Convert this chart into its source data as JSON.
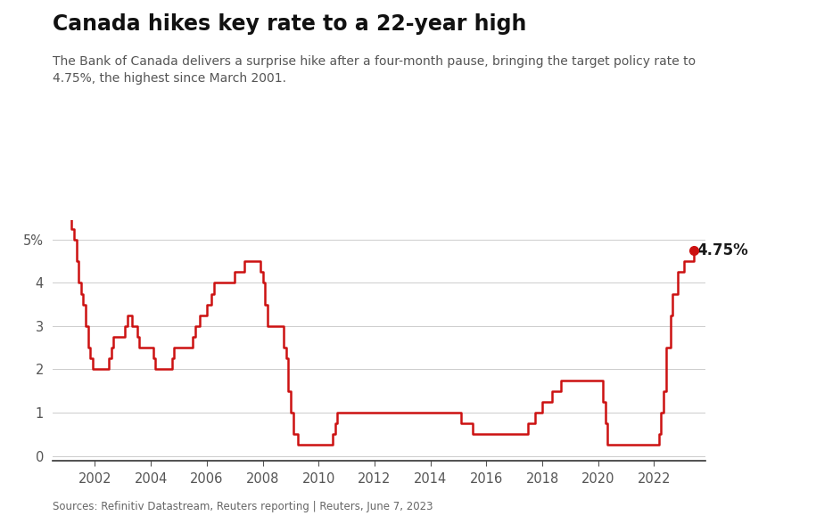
{
  "title": "Canada hikes key rate to a 22-year high",
  "subtitle": "The Bank of Canada delivers a surprise hike after a four-month pause, bringing the target policy rate to\n4.75%, the highest since March 2001.",
  "source": "Sources: Refinitiv Datastream, Reuters reporting | Reuters, June 7, 2023",
  "line_color": "#cc1111",
  "dot_color": "#cc1111",
  "bg_color": "#ffffff",
  "grid_color": "#cccccc",
  "annotation": "4.75%",
  "xlim_min": 2000.5,
  "xlim_max": 2023.85,
  "ylim_min": -0.12,
  "ylim_max": 5.45,
  "yticks": [
    0,
    1,
    2,
    3,
    4,
    5
  ],
  "ytick_labels": [
    "0",
    "1",
    "2",
    "3",
    "4",
    "5%"
  ],
  "xticks": [
    2002,
    2004,
    2006,
    2008,
    2010,
    2012,
    2014,
    2016,
    2018,
    2020,
    2022
  ],
  "rate_data": [
    [
      2000.583,
      5.75
    ],
    [
      2001.0,
      5.75
    ],
    [
      2001.083,
      5.5
    ],
    [
      2001.167,
      5.25
    ],
    [
      2001.25,
      5.0
    ],
    [
      2001.333,
      4.5
    ],
    [
      2001.417,
      4.0
    ],
    [
      2001.5,
      3.75
    ],
    [
      2001.583,
      3.5
    ],
    [
      2001.667,
      3.0
    ],
    [
      2001.75,
      2.5
    ],
    [
      2001.833,
      2.25
    ],
    [
      2001.917,
      2.0
    ],
    [
      2002.0,
      2.0
    ],
    [
      2002.25,
      2.0
    ],
    [
      2002.5,
      2.25
    ],
    [
      2002.583,
      2.5
    ],
    [
      2002.667,
      2.75
    ],
    [
      2003.0,
      2.75
    ],
    [
      2003.083,
      3.0
    ],
    [
      2003.167,
      3.25
    ],
    [
      2003.333,
      3.0
    ],
    [
      2003.5,
      2.75
    ],
    [
      2003.583,
      2.5
    ],
    [
      2003.667,
      2.5
    ],
    [
      2003.75,
      2.5
    ],
    [
      2003.833,
      2.5
    ],
    [
      2003.917,
      2.5
    ],
    [
      2004.0,
      2.5
    ],
    [
      2004.083,
      2.25
    ],
    [
      2004.167,
      2.0
    ],
    [
      2004.333,
      2.0
    ],
    [
      2004.583,
      2.0
    ],
    [
      2004.667,
      2.0
    ],
    [
      2004.75,
      2.25
    ],
    [
      2004.833,
      2.5
    ],
    [
      2005.0,
      2.5
    ],
    [
      2005.083,
      2.5
    ],
    [
      2005.167,
      2.5
    ],
    [
      2005.333,
      2.5
    ],
    [
      2005.5,
      2.75
    ],
    [
      2005.583,
      3.0
    ],
    [
      2005.667,
      3.0
    ],
    [
      2005.75,
      3.25
    ],
    [
      2005.833,
      3.25
    ],
    [
      2005.917,
      3.25
    ],
    [
      2006.0,
      3.5
    ],
    [
      2006.167,
      3.75
    ],
    [
      2006.25,
      4.0
    ],
    [
      2006.333,
      4.0
    ],
    [
      2006.5,
      4.0
    ],
    [
      2006.583,
      4.0
    ],
    [
      2006.75,
      4.0
    ],
    [
      2006.917,
      4.0
    ],
    [
      2007.0,
      4.25
    ],
    [
      2007.083,
      4.25
    ],
    [
      2007.25,
      4.25
    ],
    [
      2007.333,
      4.5
    ],
    [
      2007.583,
      4.5
    ],
    [
      2007.667,
      4.5
    ],
    [
      2007.75,
      4.5
    ],
    [
      2007.833,
      4.5
    ],
    [
      2007.917,
      4.25
    ],
    [
      2008.0,
      4.0
    ],
    [
      2008.083,
      3.5
    ],
    [
      2008.167,
      3.0
    ],
    [
      2008.25,
      3.0
    ],
    [
      2008.333,
      3.0
    ],
    [
      2008.417,
      3.0
    ],
    [
      2008.5,
      3.0
    ],
    [
      2008.583,
      3.0
    ],
    [
      2008.667,
      3.0
    ],
    [
      2008.75,
      2.5
    ],
    [
      2008.833,
      2.25
    ],
    [
      2008.917,
      1.5
    ],
    [
      2009.0,
      1.0
    ],
    [
      2009.083,
      0.5
    ],
    [
      2009.167,
      0.5
    ],
    [
      2009.25,
      0.25
    ],
    [
      2009.333,
      0.25
    ],
    [
      2009.5,
      0.25
    ],
    [
      2009.583,
      0.25
    ],
    [
      2009.667,
      0.25
    ],
    [
      2009.75,
      0.25
    ],
    [
      2009.833,
      0.25
    ],
    [
      2009.917,
      0.25
    ],
    [
      2010.0,
      0.25
    ],
    [
      2010.083,
      0.25
    ],
    [
      2010.167,
      0.25
    ],
    [
      2010.25,
      0.25
    ],
    [
      2010.333,
      0.25
    ],
    [
      2010.5,
      0.5
    ],
    [
      2010.583,
      0.75
    ],
    [
      2010.667,
      1.0
    ],
    [
      2010.75,
      1.0
    ],
    [
      2010.833,
      1.0
    ],
    [
      2010.917,
      1.0
    ],
    [
      2011.0,
      1.0
    ],
    [
      2011.083,
      1.0
    ],
    [
      2011.167,
      1.0
    ],
    [
      2011.25,
      1.0
    ],
    [
      2011.333,
      1.0
    ],
    [
      2011.5,
      1.0
    ],
    [
      2011.583,
      1.0
    ],
    [
      2011.667,
      1.0
    ],
    [
      2011.75,
      1.0
    ],
    [
      2011.833,
      1.0
    ],
    [
      2011.917,
      1.0
    ],
    [
      2012.0,
      1.0
    ],
    [
      2012.083,
      1.0
    ],
    [
      2012.167,
      1.0
    ],
    [
      2012.25,
      1.0
    ],
    [
      2012.333,
      1.0
    ],
    [
      2012.5,
      1.0
    ],
    [
      2012.583,
      1.0
    ],
    [
      2012.667,
      1.0
    ],
    [
      2012.75,
      1.0
    ],
    [
      2012.833,
      1.0
    ],
    [
      2012.917,
      1.0
    ],
    [
      2013.0,
      1.0
    ],
    [
      2013.083,
      1.0
    ],
    [
      2013.167,
      1.0
    ],
    [
      2013.25,
      1.0
    ],
    [
      2013.333,
      1.0
    ],
    [
      2013.5,
      1.0
    ],
    [
      2013.583,
      1.0
    ],
    [
      2013.667,
      1.0
    ],
    [
      2013.75,
      1.0
    ],
    [
      2013.833,
      1.0
    ],
    [
      2013.917,
      1.0
    ],
    [
      2014.0,
      1.0
    ],
    [
      2014.083,
      1.0
    ],
    [
      2014.167,
      1.0
    ],
    [
      2014.25,
      1.0
    ],
    [
      2014.333,
      1.0
    ],
    [
      2014.5,
      1.0
    ],
    [
      2014.583,
      1.0
    ],
    [
      2014.667,
      1.0
    ],
    [
      2014.75,
      1.0
    ],
    [
      2014.833,
      1.0
    ],
    [
      2014.917,
      1.0
    ],
    [
      2015.0,
      1.0
    ],
    [
      2015.083,
      0.75
    ],
    [
      2015.167,
      0.75
    ],
    [
      2015.25,
      0.75
    ],
    [
      2015.333,
      0.75
    ],
    [
      2015.5,
      0.5
    ],
    [
      2015.583,
      0.5
    ],
    [
      2015.667,
      0.5
    ],
    [
      2015.75,
      0.5
    ],
    [
      2015.833,
      0.5
    ],
    [
      2015.917,
      0.5
    ],
    [
      2016.0,
      0.5
    ],
    [
      2016.083,
      0.5
    ],
    [
      2016.167,
      0.5
    ],
    [
      2016.25,
      0.5
    ],
    [
      2016.333,
      0.5
    ],
    [
      2016.5,
      0.5
    ],
    [
      2016.583,
      0.5
    ],
    [
      2016.667,
      0.5
    ],
    [
      2016.75,
      0.5
    ],
    [
      2016.833,
      0.5
    ],
    [
      2016.917,
      0.5
    ],
    [
      2017.0,
      0.5
    ],
    [
      2017.083,
      0.5
    ],
    [
      2017.167,
      0.5
    ],
    [
      2017.25,
      0.5
    ],
    [
      2017.333,
      0.5
    ],
    [
      2017.5,
      0.75
    ],
    [
      2017.583,
      0.75
    ],
    [
      2017.667,
      0.75
    ],
    [
      2017.75,
      1.0
    ],
    [
      2017.833,
      1.0
    ],
    [
      2017.917,
      1.0
    ],
    [
      2018.0,
      1.25
    ],
    [
      2018.083,
      1.25
    ],
    [
      2018.167,
      1.25
    ],
    [
      2018.25,
      1.25
    ],
    [
      2018.333,
      1.5
    ],
    [
      2018.5,
      1.5
    ],
    [
      2018.583,
      1.5
    ],
    [
      2018.667,
      1.75
    ],
    [
      2018.75,
      1.75
    ],
    [
      2018.833,
      1.75
    ],
    [
      2018.917,
      1.75
    ],
    [
      2019.0,
      1.75
    ],
    [
      2019.083,
      1.75
    ],
    [
      2019.167,
      1.75
    ],
    [
      2019.25,
      1.75
    ],
    [
      2019.333,
      1.75
    ],
    [
      2019.5,
      1.75
    ],
    [
      2019.583,
      1.75
    ],
    [
      2019.667,
      1.75
    ],
    [
      2019.75,
      1.75
    ],
    [
      2019.833,
      1.75
    ],
    [
      2019.917,
      1.75
    ],
    [
      2020.0,
      1.75
    ],
    [
      2020.167,
      1.25
    ],
    [
      2020.25,
      0.75
    ],
    [
      2020.333,
      0.25
    ],
    [
      2020.5,
      0.25
    ],
    [
      2020.583,
      0.25
    ],
    [
      2020.667,
      0.25
    ],
    [
      2020.75,
      0.25
    ],
    [
      2020.833,
      0.25
    ],
    [
      2020.917,
      0.25
    ],
    [
      2021.0,
      0.25
    ],
    [
      2021.083,
      0.25
    ],
    [
      2021.167,
      0.25
    ],
    [
      2021.25,
      0.25
    ],
    [
      2021.333,
      0.25
    ],
    [
      2021.5,
      0.25
    ],
    [
      2021.583,
      0.25
    ],
    [
      2021.667,
      0.25
    ],
    [
      2021.75,
      0.25
    ],
    [
      2021.833,
      0.25
    ],
    [
      2021.917,
      0.25
    ],
    [
      2022.0,
      0.25
    ],
    [
      2022.083,
      0.25
    ],
    [
      2022.167,
      0.5
    ],
    [
      2022.25,
      1.0
    ],
    [
      2022.333,
      1.5
    ],
    [
      2022.417,
      2.5
    ],
    [
      2022.5,
      2.5
    ],
    [
      2022.583,
      3.25
    ],
    [
      2022.667,
      3.75
    ],
    [
      2022.75,
      3.75
    ],
    [
      2022.833,
      4.25
    ],
    [
      2022.917,
      4.25
    ],
    [
      2023.0,
      4.25
    ],
    [
      2023.083,
      4.5
    ],
    [
      2023.167,
      4.5
    ],
    [
      2023.333,
      4.5
    ],
    [
      2023.417,
      4.75
    ]
  ]
}
